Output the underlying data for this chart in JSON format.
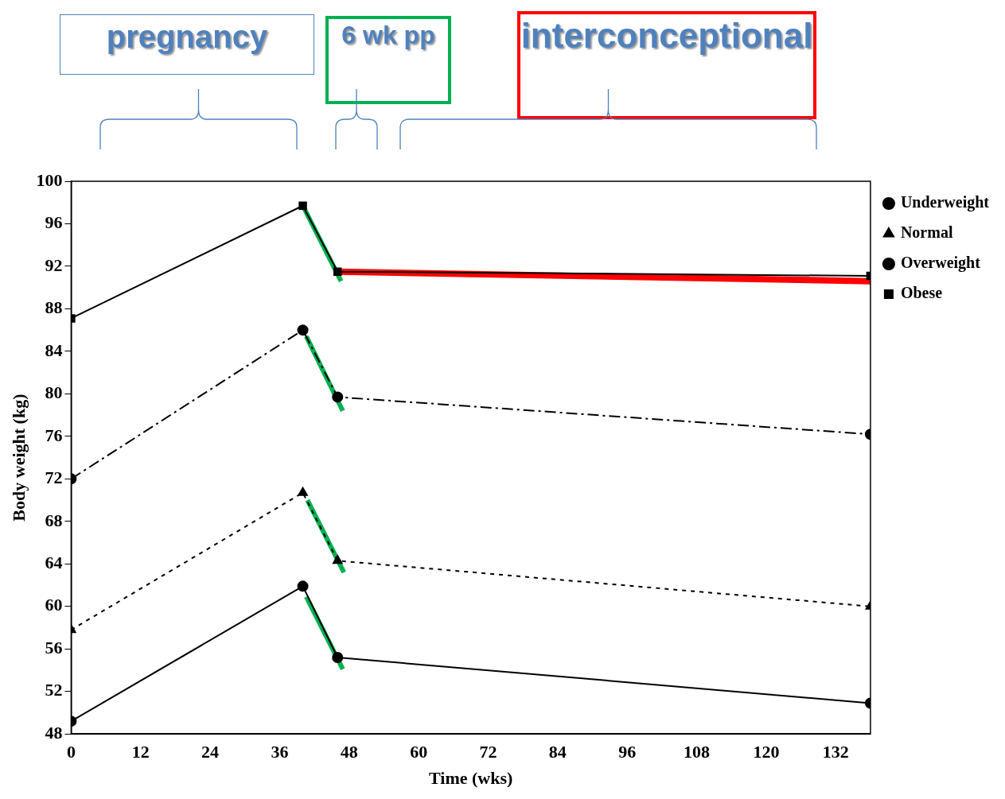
{
  "chart_data": {
    "type": "line",
    "xlabel": "Time (wks)",
    "ylabel": "Body weight (kg)",
    "annotations": [
      "pregnancy",
      "6 wk pp",
      "interconceptional"
    ],
    "xlim": [
      0,
      138
    ],
    "xticks": [
      0,
      12,
      24,
      36,
      48,
      60,
      72,
      84,
      96,
      108,
      120,
      132
    ],
    "ylim": [
      48,
      100
    ],
    "yticks": [
      48,
      52,
      56,
      60,
      64,
      68,
      72,
      76,
      80,
      84,
      88,
      92,
      96,
      100
    ],
    "grid": false,
    "legend": "right",
    "series": [
      {
        "name": "Underweight",
        "color": "#000000",
        "marker": "circle",
        "line_style": "solid",
        "x": [
          0,
          40,
          46,
          138
        ],
        "values": [
          49.2,
          61.9,
          55.2,
          50.9
        ]
      },
      {
        "name": "Normal",
        "color": "#000000",
        "marker": "triangle",
        "line_style": "dotted",
        "x": [
          0,
          40,
          46,
          138
        ],
        "values": [
          57.8,
          70.7,
          64.3,
          60.0
        ]
      },
      {
        "name": "Overweight",
        "color": "#000000",
        "marker": "circle",
        "line_style": "dashed",
        "x": [
          0,
          40,
          46,
          138
        ],
        "values": [
          72.0,
          86.0,
          79.7,
          76.2
        ]
      },
      {
        "name": "Obese",
        "color": "#000000",
        "marker": "square",
        "line_style": "solid",
        "x": [
          0,
          40,
          46,
          138
        ],
        "values": [
          87.1,
          97.7,
          91.5,
          91.1
        ]
      },
      {
        "color": "#00b050",
        "marker": "none",
        "line_style": "solid",
        "x": [
          40,
          46.6
        ],
        "values": [
          97.7,
          90.6
        ]
      },
      {
        "color": "#00b050",
        "marker": "none",
        "line_style": "solid",
        "x": [
          40.6,
          46.9
        ],
        "values": [
          85.4,
          78.4
        ]
      },
      {
        "color": "#00b050",
        "marker": "none",
        "line_style": "solid",
        "x": [
          40.8,
          47.1
        ],
        "values": [
          70.0,
          63.2
        ]
      },
      {
        "color": "#00b050",
        "marker": "none",
        "line_style": "solid",
        "x": [
          40.6,
          46.9
        ],
        "values": [
          60.9,
          54.1
        ]
      },
      {
        "color": "#ff0000",
        "marker": "none",
        "line_style": "solid",
        "x": [
          46,
          138
        ],
        "values": [
          91.5,
          90.6
        ]
      }
    ]
  }
}
